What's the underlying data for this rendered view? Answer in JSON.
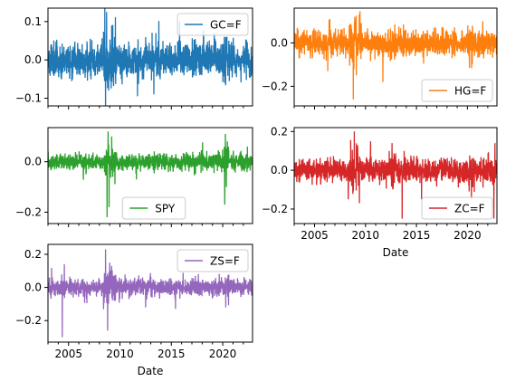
{
  "chart_data": [
    {
      "type": "line",
      "series": [
        {
          "name": "GC=F",
          "color": "#1f77b4"
        }
      ],
      "x_range": [
        2003.0,
        2022.9
      ],
      "ylim": [
        -0.12,
        0.135
      ],
      "yticks": [
        -0.1,
        0.0,
        0.1
      ],
      "ytick_labels": [
        "−0.1",
        "0.0",
        "0.1"
      ],
      "xticks": [
        2005,
        2010,
        2015,
        2020
      ],
      "xtick_labels": [],
      "xlabel": "",
      "legend_loc": "top-right",
      "volatility": 0.022,
      "spikes": [
        [
          2008.7,
          0.125
        ],
        [
          2008.9,
          -0.08
        ],
        [
          2009.2,
          0.09
        ],
        [
          2011.7,
          -0.095
        ],
        [
          2013.3,
          -0.09
        ],
        [
          2013.5,
          0.07
        ],
        [
          2020.2,
          -0.06
        ],
        [
          2020.3,
          0.06
        ],
        [
          2020.6,
          0.05
        ]
      ],
      "seed": 11
    },
    {
      "type": "line",
      "series": [
        {
          "name": "HG=F",
          "color": "#ff7f0e"
        }
      ],
      "x_range": [
        2003.0,
        2022.9
      ],
      "ylim": [
        -0.29,
        0.16
      ],
      "yticks": [
        -0.2,
        0.0
      ],
      "ytick_labels": [
        "−0.2",
        "0.0"
      ],
      "xticks": [
        2005,
        2010,
        2015,
        2020
      ],
      "xtick_labels": [],
      "xlabel": "",
      "legend_loc": "lower-right",
      "volatility": 0.028,
      "spikes": [
        [
          2006.3,
          -0.13
        ],
        [
          2006.5,
          0.11
        ],
        [
          2008.8,
          -0.26
        ],
        [
          2008.95,
          0.12
        ],
        [
          2009.1,
          -0.15
        ],
        [
          2011.7,
          -0.18
        ],
        [
          2020.2,
          -0.09
        ],
        [
          2021.5,
          0.1
        ]
      ],
      "seed": 23
    },
    {
      "type": "line",
      "series": [
        {
          "name": "SPY",
          "color": "#2ca02c"
        }
      ],
      "x_range": [
        2003.0,
        2022.9
      ],
      "ylim": [
        -0.245,
        0.135
      ],
      "yticks": [
        -0.2,
        0.0
      ],
      "ytick_labels": [
        "−0.2",
        "0.0"
      ],
      "xticks": [
        2005,
        2010,
        2015,
        2020
      ],
      "xtick_labels": [],
      "xlabel": "",
      "legend_loc": "lower-center",
      "volatility": 0.016,
      "spikes": [
        [
          2008.75,
          -0.22
        ],
        [
          2008.85,
          0.12
        ],
        [
          2008.95,
          -0.18
        ],
        [
          2009.2,
          0.1
        ],
        [
          2011.6,
          -0.07
        ],
        [
          2020.2,
          -0.17
        ],
        [
          2020.25,
          0.11
        ],
        [
          2020.35,
          -0.1
        ],
        [
          2020.45,
          0.08
        ],
        [
          2022.4,
          0.06
        ]
      ],
      "seed": 37
    },
    {
      "type": "line",
      "series": [
        {
          "name": "ZC=F",
          "color": "#d62728"
        }
      ],
      "x_range": [
        2003.0,
        2022.9
      ],
      "ylim": [
        -0.275,
        0.22
      ],
      "yticks": [
        -0.2,
        0.0,
        0.2
      ],
      "ytick_labels": [
        "−0.2",
        "0.0",
        "0.2"
      ],
      "xticks": [
        2005,
        2010,
        2015,
        2020
      ],
      "xtick_labels": [
        "2005",
        "2010",
        "2015",
        "2020"
      ],
      "xlabel": "Date",
      "legend_loc": "lower-right",
      "volatility": 0.03,
      "spikes": [
        [
          2008.3,
          -0.15
        ],
        [
          2008.9,
          0.2
        ],
        [
          2009.4,
          -0.17
        ],
        [
          2010.5,
          0.15
        ],
        [
          2012.6,
          0.14
        ],
        [
          2013.6,
          -0.25
        ],
        [
          2015.5,
          -0.15
        ],
        [
          2020.4,
          -0.15
        ],
        [
          2022.6,
          -0.25
        ],
        [
          2022.7,
          0.14
        ]
      ],
      "seed": 53
    },
    {
      "type": "line",
      "series": [
        {
          "name": "ZS=F",
          "color": "#9467bd"
        }
      ],
      "x_range": [
        2003.0,
        2022.9
      ],
      "ylim": [
        -0.33,
        0.26
      ],
      "yticks": [
        -0.2,
        0.0,
        0.2
      ],
      "ytick_labels": [
        "−0.2",
        "0.0",
        "0.2"
      ],
      "xticks": [
        2005,
        2010,
        2015,
        2020
      ],
      "xtick_labels": [
        "2005",
        "2010",
        "2015",
        "2020"
      ],
      "xlabel": "Date",
      "legend_loc": "top-right",
      "volatility": 0.026,
      "spikes": [
        [
          2004.4,
          -0.3
        ],
        [
          2004.6,
          0.14
        ],
        [
          2008.6,
          0.23
        ],
        [
          2008.8,
          -0.26
        ],
        [
          2009.0,
          0.15
        ],
        [
          2012.5,
          -0.12
        ],
        [
          2015.4,
          -0.13
        ],
        [
          2020.3,
          -0.12
        ]
      ],
      "seed": 71
    }
  ]
}
